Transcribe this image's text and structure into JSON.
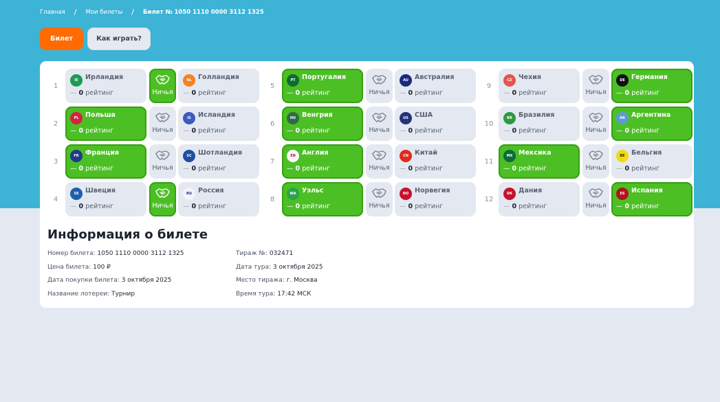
{
  "breadcrumb": {
    "home": "Главная",
    "my_tickets": "Мои билеты",
    "current": "Билет № 1050 1110 0000 3112 1325",
    "separator": "/"
  },
  "actions": {
    "ticket_label": "Билет",
    "howto_label": "Как играть?"
  },
  "labels": {
    "draw": "Ничья",
    "rating_word": "рейтинг",
    "dash": "—"
  },
  "colors": {
    "header_bg": "#3db3d6",
    "accent_orange": "#ff6b00",
    "win_green": "#4cbf25",
    "page_bg": "#e4e8f0"
  },
  "matches": [
    {
      "num": "1",
      "home": {
        "code": "IE",
        "name": "Ирландия",
        "rating": "0",
        "color": "#1e9a58"
      },
      "away": {
        "code": "NL",
        "name": "Голландия",
        "rating": "0",
        "color": "#f58220"
      },
      "pick": "draw"
    },
    {
      "num": "2",
      "home": {
        "code": "PL",
        "name": "Польша",
        "rating": "0",
        "color": "#d4213d"
      },
      "away": {
        "code": "IS",
        "name": "Исландия",
        "rating": "0",
        "color": "#3b5bbf"
      },
      "pick": "home"
    },
    {
      "num": "3",
      "home": {
        "code": "FR",
        "name": "Франция",
        "rating": "0",
        "color": "#1e3a8a"
      },
      "away": {
        "code": "SC",
        "name": "Шотландия",
        "rating": "0",
        "color": "#1f4fa3"
      },
      "pick": "home"
    },
    {
      "num": "4",
      "home": {
        "code": "SE",
        "name": "Швеция",
        "rating": "0",
        "color": "#1d5fae"
      },
      "away": {
        "code": "RU",
        "name": "Россия",
        "rating": "0",
        "color": "#f2f4f7"
      },
      "pick": "draw"
    },
    {
      "num": "5",
      "home": {
        "code": "PT",
        "name": "Португалия",
        "rating": "0",
        "color": "#0f6b2f"
      },
      "away": {
        "code": "AU",
        "name": "Австралия",
        "rating": "0",
        "color": "#1a2a7a"
      },
      "pick": "home"
    },
    {
      "num": "6",
      "home": {
        "code": "HU",
        "name": "Венгрия",
        "rating": "0",
        "color": "#2f6b45"
      },
      "away": {
        "code": "US",
        "name": "США",
        "rating": "0",
        "color": "#22337a"
      },
      "pick": "home"
    },
    {
      "num": "7",
      "home": {
        "code": "EN",
        "name": "Англия",
        "rating": "0",
        "color": "#f8f8f8"
      },
      "away": {
        "code": "CN",
        "name": "Китай",
        "rating": "0",
        "color": "#e02a1c"
      },
      "pick": "home"
    },
    {
      "num": "8",
      "home": {
        "code": "WA",
        "name": "Уэльс",
        "rating": "0",
        "color": "#2aa34a"
      },
      "away": {
        "code": "NO",
        "name": "Норвегия",
        "rating": "0",
        "color": "#c8102e"
      },
      "pick": "home"
    },
    {
      "num": "9",
      "home": {
        "code": "CZ",
        "name": "Чехия",
        "rating": "0",
        "color": "#e8534a"
      },
      "away": {
        "code": "DE",
        "name": "Германия",
        "rating": "0",
        "color": "#111111"
      },
      "pick": "away"
    },
    {
      "num": "10",
      "home": {
        "code": "BR",
        "name": "Бразилия",
        "rating": "0",
        "color": "#2e9a3f"
      },
      "away": {
        "code": "AR",
        "name": "Аргентина",
        "rating": "0",
        "color": "#5b9bd5"
      },
      "pick": "away"
    },
    {
      "num": "11",
      "home": {
        "code": "MX",
        "name": "Мексика",
        "rating": "0",
        "color": "#0b6b3a"
      },
      "away": {
        "code": "BE",
        "name": "Бельгия",
        "rating": "0",
        "color": "#f5d90a"
      },
      "pick": "home"
    },
    {
      "num": "12",
      "home": {
        "code": "DK",
        "name": "Дания",
        "rating": "0",
        "color": "#c8102e"
      },
      "away": {
        "code": "ES",
        "name": "Испания",
        "rating": "0",
        "color": "#b4131c"
      },
      "pick": "away"
    }
  ],
  "info": {
    "title": "Информация о билете",
    "left": [
      {
        "key": "Номер билета:",
        "value": "1050 1110 0000 3112 1325"
      },
      {
        "key": "Цена билета:",
        "value": "100 ₽"
      },
      {
        "key": "Дата покупки билета:",
        "value": "3 октября 2025"
      },
      {
        "key": "Название лотереи:",
        "value": "Турнир"
      }
    ],
    "right": [
      {
        "key": "Тираж №:",
        "value": "032471"
      },
      {
        "key": "Дата тура:",
        "value": "3 октября 2025"
      },
      {
        "key": "Место тиража:",
        "value": "г. Москва"
      },
      {
        "key": "Время тура:",
        "value": "17:42 МСК"
      }
    ]
  }
}
